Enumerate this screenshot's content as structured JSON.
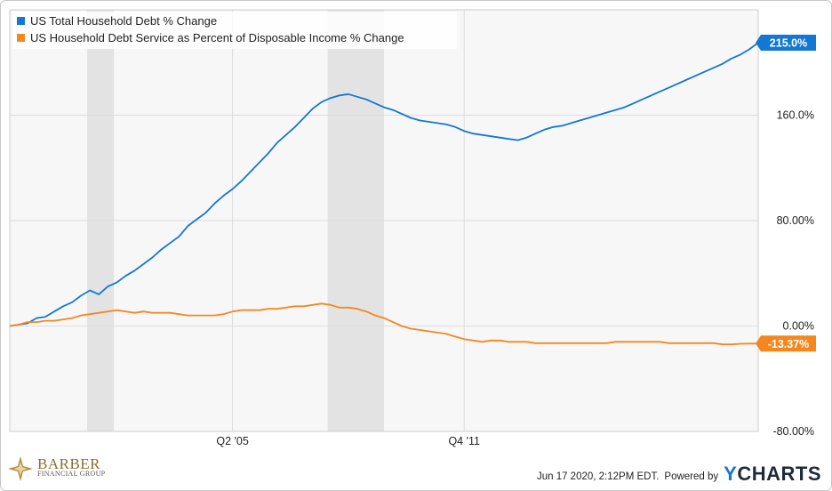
{
  "chart_data": {
    "type": "line",
    "title": "",
    "xlabel": "",
    "ylabel": "",
    "x_ticks": [
      "Q2 '05",
      "Q4 '11"
    ],
    "y_ticks": [
      "-80.00%",
      "0.00%",
      "80.00%",
      "160.0%"
    ],
    "ylim": [
      -80,
      240
    ],
    "legend_position": "top-left",
    "grid": true,
    "recessions": [
      [
        2001.17,
        2001.92
      ],
      [
        2007.92,
        2009.5
      ]
    ],
    "series": [
      {
        "name": "US Total Household Debt % Change",
        "color": "#1477d4",
        "end_label": "215.0%",
        "points": [
          [
            1999.0,
            0
          ],
          [
            1999.25,
            1
          ],
          [
            1999.5,
            2
          ],
          [
            1999.75,
            6
          ],
          [
            2000.0,
            7
          ],
          [
            2000.25,
            11
          ],
          [
            2000.5,
            15
          ],
          [
            2000.75,
            18
          ],
          [
            2001.0,
            23
          ],
          [
            2001.25,
            27
          ],
          [
            2001.5,
            24
          ],
          [
            2001.75,
            30
          ],
          [
            2002.0,
            33
          ],
          [
            2002.25,
            38
          ],
          [
            2002.5,
            42
          ],
          [
            2002.75,
            47
          ],
          [
            2003.0,
            52
          ],
          [
            2003.25,
            58
          ],
          [
            2003.5,
            63
          ],
          [
            2003.75,
            68
          ],
          [
            2004.0,
            76
          ],
          [
            2004.25,
            81
          ],
          [
            2004.5,
            86
          ],
          [
            2004.75,
            93
          ],
          [
            2005.0,
            99
          ],
          [
            2005.25,
            104
          ],
          [
            2005.5,
            110
          ],
          [
            2005.75,
            117
          ],
          [
            2006.0,
            124
          ],
          [
            2006.25,
            131
          ],
          [
            2006.5,
            139
          ],
          [
            2006.75,
            145
          ],
          [
            2007.0,
            151
          ],
          [
            2007.25,
            158
          ],
          [
            2007.5,
            165
          ],
          [
            2007.75,
            170
          ],
          [
            2008.0,
            173
          ],
          [
            2008.25,
            175
          ],
          [
            2008.5,
            176
          ],
          [
            2008.75,
            174
          ],
          [
            2009.0,
            172
          ],
          [
            2009.25,
            169
          ],
          [
            2009.5,
            166
          ],
          [
            2009.75,
            164
          ],
          [
            2010.0,
            161
          ],
          [
            2010.25,
            158
          ],
          [
            2010.5,
            156
          ],
          [
            2010.75,
            155
          ],
          [
            2011.0,
            154
          ],
          [
            2011.25,
            153
          ],
          [
            2011.5,
            151
          ],
          [
            2011.75,
            148
          ],
          [
            2012.0,
            146
          ],
          [
            2012.25,
            145
          ],
          [
            2012.5,
            144
          ],
          [
            2012.75,
            143
          ],
          [
            2013.0,
            142
          ],
          [
            2013.25,
            141
          ],
          [
            2013.5,
            143
          ],
          [
            2013.75,
            146
          ],
          [
            2014.0,
            149
          ],
          [
            2014.25,
            151
          ],
          [
            2014.5,
            152
          ],
          [
            2014.75,
            154
          ],
          [
            2015.0,
            156
          ],
          [
            2015.25,
            158
          ],
          [
            2015.5,
            160
          ],
          [
            2015.75,
            162
          ],
          [
            2016.0,
            164
          ],
          [
            2016.25,
            166
          ],
          [
            2016.5,
            169
          ],
          [
            2016.75,
            172
          ],
          [
            2017.0,
            175
          ],
          [
            2017.25,
            178
          ],
          [
            2017.5,
            181
          ],
          [
            2017.75,
            184
          ],
          [
            2018.0,
            187
          ],
          [
            2018.25,
            190
          ],
          [
            2018.5,
            193
          ],
          [
            2018.75,
            196
          ],
          [
            2019.0,
            199
          ],
          [
            2019.25,
            203
          ],
          [
            2019.5,
            206
          ],
          [
            2019.75,
            210
          ],
          [
            2020.0,
            215
          ]
        ]
      },
      {
        "name": "US Household Debt Service as Percent of Disposable Income % Change",
        "color": "#f5871f",
        "end_label": "-13.37%",
        "points": [
          [
            1999.0,
            0
          ],
          [
            1999.25,
            1
          ],
          [
            1999.5,
            3
          ],
          [
            1999.75,
            3
          ],
          [
            2000.0,
            4
          ],
          [
            2000.25,
            4
          ],
          [
            2000.5,
            5
          ],
          [
            2000.75,
            6
          ],
          [
            2001.0,
            8
          ],
          [
            2001.25,
            9
          ],
          [
            2001.5,
            10
          ],
          [
            2001.75,
            11
          ],
          [
            2002.0,
            12
          ],
          [
            2002.25,
            11
          ],
          [
            2002.5,
            10
          ],
          [
            2002.75,
            11
          ],
          [
            2003.0,
            10
          ],
          [
            2003.25,
            10
          ],
          [
            2003.5,
            10
          ],
          [
            2003.75,
            9
          ],
          [
            2004.0,
            8
          ],
          [
            2004.25,
            8
          ],
          [
            2004.5,
            8
          ],
          [
            2004.75,
            8
          ],
          [
            2005.0,
            9
          ],
          [
            2005.25,
            11
          ],
          [
            2005.5,
            12
          ],
          [
            2005.75,
            12
          ],
          [
            2006.0,
            12
          ],
          [
            2006.25,
            13
          ],
          [
            2006.5,
            13
          ],
          [
            2006.75,
            14
          ],
          [
            2007.0,
            15
          ],
          [
            2007.25,
            15
          ],
          [
            2007.5,
            16
          ],
          [
            2007.75,
            17
          ],
          [
            2008.0,
            16
          ],
          [
            2008.25,
            14
          ],
          [
            2008.5,
            14
          ],
          [
            2008.75,
            13
          ],
          [
            2009.0,
            11
          ],
          [
            2009.25,
            8
          ],
          [
            2009.5,
            6
          ],
          [
            2009.75,
            3
          ],
          [
            2010.0,
            0
          ],
          [
            2010.25,
            -2
          ],
          [
            2010.5,
            -3
          ],
          [
            2010.75,
            -4
          ],
          [
            2011.0,
            -5
          ],
          [
            2011.25,
            -6
          ],
          [
            2011.5,
            -8
          ],
          [
            2011.75,
            -10
          ],
          [
            2012.0,
            -11
          ],
          [
            2012.25,
            -12
          ],
          [
            2012.5,
            -11
          ],
          [
            2012.75,
            -11
          ],
          [
            2013.0,
            -12
          ],
          [
            2013.25,
            -12
          ],
          [
            2013.5,
            -12
          ],
          [
            2013.75,
            -13
          ],
          [
            2014.0,
            -13
          ],
          [
            2014.25,
            -13
          ],
          [
            2014.5,
            -13
          ],
          [
            2014.75,
            -13
          ],
          [
            2015.0,
            -13
          ],
          [
            2015.25,
            -13
          ],
          [
            2015.5,
            -13
          ],
          [
            2015.75,
            -13
          ],
          [
            2016.0,
            -12
          ],
          [
            2016.25,
            -12
          ],
          [
            2016.5,
            -12
          ],
          [
            2016.75,
            -12
          ],
          [
            2017.0,
            -12
          ],
          [
            2017.25,
            -12
          ],
          [
            2017.5,
            -13
          ],
          [
            2017.75,
            -13
          ],
          [
            2018.0,
            -13
          ],
          [
            2018.25,
            -13
          ],
          [
            2018.5,
            -13
          ],
          [
            2018.75,
            -13
          ],
          [
            2019.0,
            -14
          ],
          [
            2019.25,
            -14
          ],
          [
            2019.5,
            -13.5
          ],
          [
            2019.75,
            -13.4
          ],
          [
            2020.0,
            -13.37
          ]
        ]
      }
    ]
  },
  "footer": {
    "timestamp": "Jun 17 2020, 2:12PM EDT.",
    "powered_by": "Powered by",
    "brand_y": "Y",
    "brand_rest": "CHARTS"
  },
  "logo": {
    "name": "BARBER",
    "sub": "FINANCIAL GROUP"
  }
}
